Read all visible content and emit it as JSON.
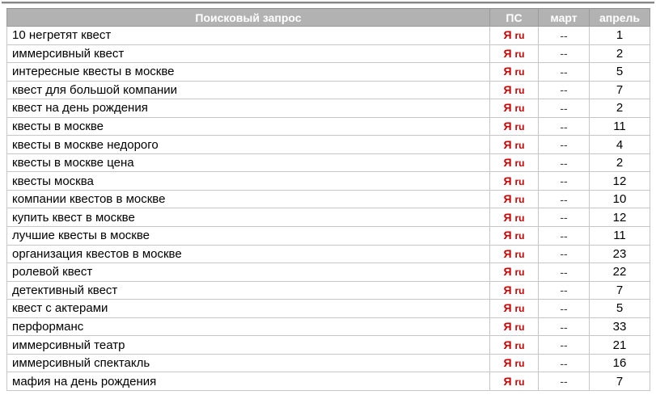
{
  "page": {
    "background_color": "#ffffff",
    "top_rule_color": "#868686"
  },
  "table": {
    "header_bg_color": "#b2b2b2",
    "header_text_color": "#ffffff",
    "accent_red": "#cc0000",
    "columns": {
      "query": "Поисковый запрос",
      "ps": "ПС",
      "march": "март",
      "april": "апрель"
    },
    "search_engine_label": {
      "ya": "Я",
      "ru": "ru"
    },
    "rows": [
      {
        "query": "10 негретят квест",
        "march": "--",
        "april": "1"
      },
      {
        "query": "иммерсивный квест",
        "march": "--",
        "april": "2"
      },
      {
        "query": "интересные квесты в москве",
        "march": "--",
        "april": "5"
      },
      {
        "query": "квест для большой компании",
        "march": "--",
        "april": "7"
      },
      {
        "query": "квест на день рождения",
        "march": "--",
        "april": "2"
      },
      {
        "query": "квесты в москве",
        "march": "--",
        "april": "11"
      },
      {
        "query": "квесты в москве недорого",
        "march": "--",
        "april": "4"
      },
      {
        "query": "квесты в москве цена",
        "march": "--",
        "april": "2"
      },
      {
        "query": "квесты москва",
        "march": "--",
        "april": "12"
      },
      {
        "query": "компании квестов в москве",
        "march": "--",
        "april": "10"
      },
      {
        "query": "купить квест в москве",
        "march": "--",
        "april": "12"
      },
      {
        "query": "лучшие квесты в москве",
        "march": "--",
        "april": "11"
      },
      {
        "query": "организация квестов в москве",
        "march": "--",
        "april": "23"
      },
      {
        "query": "ролевой квест",
        "march": "--",
        "april": "22"
      },
      {
        "query": "детективный квест",
        "march": "--",
        "april": "7"
      },
      {
        "query": "квест с актерами",
        "march": "--",
        "april": "5"
      },
      {
        "query": "перформанс",
        "march": "--",
        "april": "33"
      },
      {
        "query": "иммерсивный театр",
        "march": "--",
        "april": "21"
      },
      {
        "query": "иммерсивный спектакль",
        "march": "--",
        "april": "16"
      },
      {
        "query": "мафия на день рождения",
        "march": "--",
        "april": "7"
      }
    ]
  }
}
